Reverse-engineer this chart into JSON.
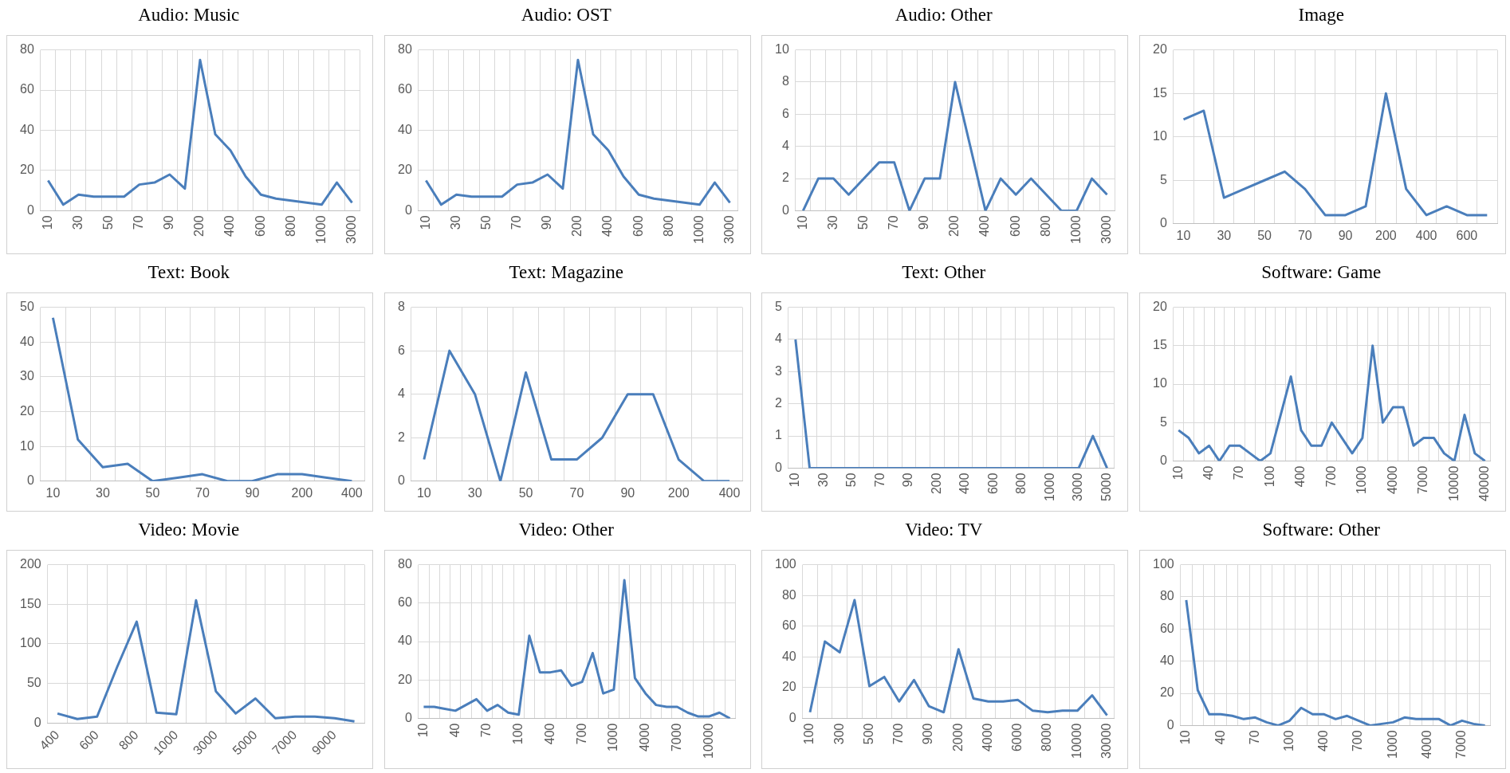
{
  "chart_data": [
    {
      "type": "line",
      "title": "Audio: Music",
      "categories": [
        "10",
        null,
        "30",
        null,
        "50",
        null,
        "70",
        null,
        "90",
        null,
        "200",
        null,
        "400",
        null,
        "600",
        null,
        "800",
        null,
        "1000",
        null,
        "3000"
      ],
      "values": [
        15,
        3,
        8,
        7,
        7,
        7,
        13,
        14,
        18,
        11,
        75,
        38,
        30,
        17,
        8,
        6,
        5,
        4,
        3,
        14,
        4
      ],
      "color": "#4a7ebb",
      "ylim": [
        0,
        80
      ],
      "yticks": [
        0,
        20,
        40,
        60,
        80
      ],
      "grid": true,
      "legend": false
    },
    {
      "type": "line",
      "title": "Audio: OST",
      "categories": [
        "10",
        null,
        "30",
        null,
        "50",
        null,
        "70",
        null,
        "90",
        null,
        "200",
        null,
        "400",
        null,
        "600",
        null,
        "800",
        null,
        "1000",
        null,
        "3000"
      ],
      "values": [
        15,
        3,
        8,
        7,
        7,
        7,
        13,
        14,
        18,
        11,
        75,
        38,
        30,
        17,
        8,
        6,
        5,
        4,
        3,
        14,
        4
      ],
      "color": "#4a7ebb",
      "ylim": [
        0,
        80
      ],
      "yticks": [
        0,
        20,
        40,
        60,
        80
      ],
      "grid": true,
      "legend": false
    },
    {
      "type": "line",
      "title": "Audio: Other",
      "categories": [
        "10",
        null,
        "30",
        null,
        "50",
        null,
        "70",
        null,
        "90",
        null,
        "200",
        null,
        "400",
        null,
        "600",
        null,
        "800",
        null,
        "1000",
        null,
        "3000"
      ],
      "values": [
        0,
        2,
        2,
        1,
        2,
        3,
        3,
        0,
        2,
        2,
        8,
        4,
        0,
        2,
        1,
        2,
        1,
        0,
        0,
        2,
        1
      ],
      "color": "#4a7ebb",
      "ylim": [
        0,
        10
      ],
      "yticks": [
        0,
        2,
        4,
        6,
        8,
        10
      ],
      "grid": true,
      "legend": false
    },
    {
      "type": "line",
      "title": "Image",
      "categories": [
        "10",
        null,
        "30",
        null,
        "50",
        null,
        "70",
        null,
        "90",
        null,
        "200",
        null,
        "400",
        null,
        "600",
        null
      ],
      "values": [
        12,
        13,
        3,
        4,
        5,
        6,
        4,
        1,
        1,
        2,
        15,
        4,
        1,
        2,
        1,
        1
      ],
      "color": "#4a7ebb",
      "ylim": [
        0,
        20
      ],
      "yticks": [
        0,
        5,
        10,
        15,
        20
      ],
      "grid": true,
      "legend": false
    },
    {
      "type": "line",
      "title": "Text: Book",
      "categories": [
        "10",
        null,
        "30",
        null,
        "50",
        null,
        "70",
        null,
        "90",
        null,
        "200",
        null,
        "400"
      ],
      "values": [
        47,
        12,
        4,
        5,
        0,
        1,
        2,
        0,
        0,
        2,
        2,
        1,
        0
      ],
      "color": "#4a7ebb",
      "ylim": [
        0,
        50
      ],
      "yticks": [
        0,
        10,
        20,
        30,
        40,
        50
      ],
      "grid": true,
      "legend": false
    },
    {
      "type": "line",
      "title": "Text: Magazine",
      "categories": [
        "10",
        null,
        "30",
        null,
        "50",
        null,
        "70",
        null,
        "90",
        null,
        "200",
        null,
        "400"
      ],
      "values": [
        1,
        6,
        4,
        0,
        5,
        1,
        1,
        2,
        4,
        4,
        1,
        0,
        0
      ],
      "color": "#4a7ebb",
      "ylim": [
        0,
        8
      ],
      "yticks": [
        0,
        2,
        4,
        6,
        8
      ],
      "grid": true,
      "legend": false
    },
    {
      "type": "line",
      "title": "Text: Other",
      "categories": [
        "10",
        null,
        "30",
        null,
        "50",
        null,
        "70",
        null,
        "90",
        null,
        "200",
        null,
        "400",
        null,
        "600",
        null,
        "800",
        null,
        "1000",
        null,
        "3000",
        null,
        "5000"
      ],
      "values": [
        4,
        0,
        0,
        0,
        0,
        0,
        0,
        0,
        0,
        0,
        0,
        0,
        0,
        0,
        0,
        0,
        0,
        0,
        0,
        0,
        0,
        1,
        0
      ],
      "color": "#4a7ebb",
      "ylim": [
        0,
        5
      ],
      "yticks": [
        0,
        1,
        2,
        3,
        4,
        5
      ],
      "grid": true,
      "legend": false
    },
    {
      "type": "line",
      "title": "Software: Game",
      "categories": [
        "10",
        null,
        null,
        "40",
        null,
        null,
        "70",
        null,
        null,
        "100",
        null,
        null,
        "400",
        null,
        null,
        "700",
        null,
        null,
        "1000",
        null,
        null,
        "4000",
        null,
        null,
        "7000",
        null,
        null,
        "10000",
        null,
        null,
        "40000"
      ],
      "values": [
        4,
        3,
        1,
        2,
        0,
        2,
        2,
        1,
        0,
        1,
        6,
        11,
        4,
        2,
        2,
        5,
        3,
        1,
        3,
        15,
        5,
        7,
        7,
        2,
        3,
        3,
        1,
        0,
        6,
        1,
        0
      ],
      "color": "#4a7ebb",
      "ylim": [
        0,
        20
      ],
      "yticks": [
        0,
        5,
        10,
        15,
        20
      ],
      "grid": true,
      "legend": false
    },
    {
      "type": "line",
      "title": "Video: Movie",
      "categories": [
        "400",
        null,
        "600",
        null,
        "800",
        null,
        "1000",
        null,
        "3000",
        null,
        "5000",
        null,
        "7000",
        null,
        "9000",
        null
      ],
      "values": [
        12,
        5,
        8,
        70,
        128,
        13,
        11,
        155,
        40,
        12,
        31,
        6,
        8,
        8,
        6,
        2
      ],
      "color": "#4a7ebb",
      "ylim": [
        0,
        200
      ],
      "yticks": [
        0,
        50,
        100,
        150,
        200
      ],
      "grid": true,
      "legend": false
    },
    {
      "type": "line",
      "title": "Video: Other",
      "categories": [
        "10",
        null,
        null,
        "40",
        null,
        null,
        "70",
        null,
        null,
        "100",
        null,
        null,
        "400",
        null,
        null,
        "700",
        null,
        null,
        "1000",
        null,
        null,
        "4000",
        null,
        null,
        "7000",
        null,
        null,
        "10000",
        null,
        null
      ],
      "values": [
        6,
        6,
        5,
        4,
        7,
        10,
        4,
        7,
        3,
        2,
        43,
        24,
        24,
        25,
        17,
        19,
        34,
        13,
        15,
        72,
        21,
        13,
        7,
        6,
        6,
        3,
        1,
        1,
        3,
        0
      ],
      "color": "#4a7ebb",
      "ylim": [
        0,
        80
      ],
      "yticks": [
        0,
        20,
        40,
        60,
        80
      ],
      "grid": true,
      "legend": false
    },
    {
      "type": "line",
      "title": "Video: TV",
      "categories": [
        "100",
        null,
        "300",
        null,
        "500",
        null,
        "700",
        null,
        "900",
        null,
        "2000",
        null,
        "4000",
        null,
        "6000",
        null,
        "8000",
        null,
        "10000",
        null,
        "30000"
      ],
      "values": [
        4,
        50,
        43,
        77,
        21,
        27,
        11,
        25,
        8,
        4,
        45,
        13,
        11,
        11,
        12,
        5,
        4,
        5,
        5,
        15,
        2
      ],
      "color": "#4a7ebb",
      "ylim": [
        0,
        100
      ],
      "yticks": [
        0,
        20,
        40,
        60,
        80,
        100
      ],
      "grid": true,
      "legend": false
    },
    {
      "type": "line",
      "title": "Software: Other",
      "categories": [
        "10",
        null,
        null,
        "40",
        null,
        null,
        "70",
        null,
        null,
        "100",
        null,
        null,
        "400",
        null,
        null,
        "700",
        null,
        null,
        "1000",
        null,
        null,
        "4000",
        null,
        null,
        "7000",
        null,
        null
      ],
      "values": [
        78,
        22,
        7,
        7,
        6,
        4,
        5,
        2,
        0,
        3,
        11,
        7,
        7,
        4,
        6,
        3,
        0,
        1,
        2,
        5,
        4,
        4,
        4,
        0,
        3,
        1,
        0
      ],
      "color": "#4a7ebb",
      "ylim": [
        0,
        100
      ],
      "yticks": [
        0,
        20,
        40,
        60,
        80,
        100
      ],
      "grid": true,
      "legend": false
    }
  ]
}
